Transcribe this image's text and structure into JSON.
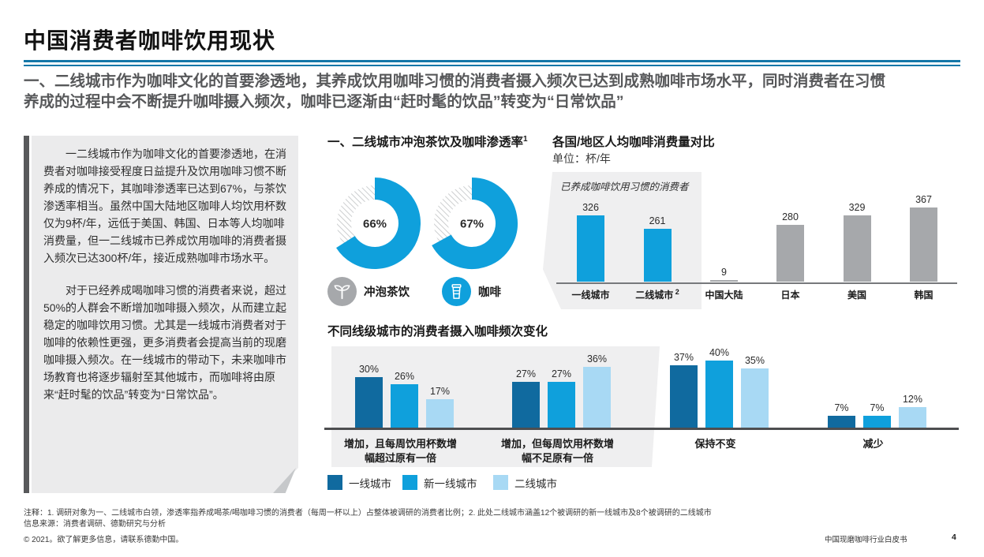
{
  "header": {
    "title": "中国消费者咖啡饮用现状",
    "subtitle": "一、二线城市作为咖啡文化的首要渗透地，其养成饮用咖啡习惯的消费者摄入频次已达到成熟咖啡市场水平，同时消费者在习惯养成的过程中会不断提升咖啡摄入频次，咖啡已逐渐由“赶时髦的饮品”转变为“日常饮品”"
  },
  "note_box": {
    "paragraphs": [
      "一二线城市作为咖啡文化的首要渗透地，在消费者对咖啡接受程度日益提升及饮用咖啡习惯不断养成的情况下，其咖啡渗透率已达到67%，与茶饮渗透率相当。虽然中国大陆地区咖啡人均饮用杯数仅为9杯/年，远低于美国、韩国、日本等人均咖啡消费量，但一二线城市已养成饮用咖啡的消费者摄入频次已达300杯/年，接近成熟咖啡市场水平。",
      "对于已经养成喝咖啡习惯的消费者来说，超过50%的人群会不断增加咖啡摄入频次，从而建立起稳定的咖啡饮用习惯。尤其是一线城市消费者对于咖啡的依赖性更强，更多消费者会提高当前的现磨咖啡摄入频次。在一线城市的带动下，未来咖啡市场教育也将逐步辐射至其他城市，而咖啡将由原来“赶时髦的饮品”转变为“日常饮品”。"
    ]
  },
  "colors": {
    "accent_blue": "#0FA0DC",
    "dark_blue": "#106A9F",
    "light_blue": "#A8D9F4",
    "bar_gray": "#A6A8AB",
    "panel_gray": "#EFEFF0",
    "hatch_gray": "#C4C6C8",
    "underline_blue": "#1577A8"
  },
  "chart_data": [
    {
      "id": "penetration_donuts",
      "type": "pie",
      "title": "一、二线城市冲泡茶饮及咖啡渗透率",
      "title_footnote_ref": "1",
      "donuts": [
        {
          "label": "冲泡茶饮",
          "value_pct": 66,
          "icon": "tea-sprout-icon",
          "icon_bg": "#A6A8AB"
        },
        {
          "label": "咖啡",
          "value_pct": 67,
          "icon": "coffee-cup-icon",
          "icon_bg": "#0FA0DC"
        }
      ],
      "legend_position": "bottom",
      "grid": false
    },
    {
      "id": "per_capita_coffee_consumption",
      "type": "bar",
      "title": "各国/地区人均咖啡消费量对比",
      "subtitle": "单位：杯/年",
      "annotation": "已养成咖啡饮用习惯的消费者",
      "categories": [
        "一线城市",
        "二线城市",
        "中国大陆",
        "日本",
        "美国",
        "韩国"
      ],
      "category_footnote_refs": [
        "",
        "2",
        "",
        "",
        "",
        ""
      ],
      "values": [
        326,
        261,
        9,
        280,
        329,
        367
      ],
      "highlight": [
        true,
        true,
        false,
        false,
        false,
        false
      ],
      "xlabel": "",
      "ylabel": "杯/年",
      "ylim": [
        0,
        400
      ],
      "grid": false
    },
    {
      "id": "frequency_change_by_city_tier",
      "type": "bar",
      "title": "不同线级城市的消费者摄入咖啡频次变化",
      "categories": [
        "增加，且每周饮用杯数增幅超过原有一倍",
        "增加，但每周饮用杯数增幅不足原有一倍",
        "保持不变",
        "减少"
      ],
      "categories_lines": [
        [
          "增加，且每周饮用杯数增",
          "幅超过原有一倍"
        ],
        [
          "增加，但每周饮用杯数增",
          "幅不足原有一倍"
        ],
        [
          "保持不变"
        ],
        [
          "减少"
        ]
      ],
      "series": [
        {
          "name": "一线城市",
          "color": "#106A9F",
          "values": [
            30,
            27,
            37,
            7
          ]
        },
        {
          "name": "新一线城市",
          "color": "#0FA0DC",
          "values": [
            26,
            27,
            40,
            7
          ]
        },
        {
          "name": "二线城市",
          "color": "#A8D9F4",
          "values": [
            17,
            36,
            35,
            12
          ]
        }
      ],
      "unit": "%",
      "ylim": [
        0,
        45
      ],
      "legend_position": "bottom",
      "grid": false
    }
  ],
  "footer": {
    "note": "注释：1. 调研对象为一、二线城市白领，渗透率指养成喝茶/喝咖啡习惯的消费者（每周一杯以上）占整体被调研的消费者比例；2. 此处二线城市涵盖12个被调研的新一线城市及8个被调研的二线城市",
    "source": "信息来源：消费者调研、德勤研究与分析",
    "copyright": "© 2021。欲了解更多信息，请联系德勤中国。",
    "doc_title": "中国现磨咖啡行业白皮书",
    "page_number": "4"
  }
}
